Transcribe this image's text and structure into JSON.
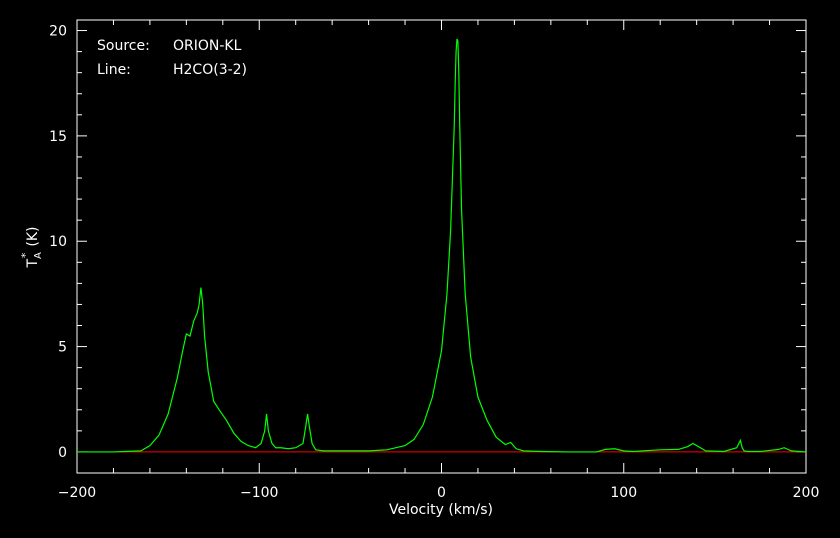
{
  "chart_data": {
    "type": "line",
    "title": "",
    "xlabel": "Velocity (km/s)",
    "ylabel": {
      "main": "T",
      "sub": "A",
      "sup": "*",
      "unit": "(K)"
    },
    "xlim": [
      -200,
      200
    ],
    "ylim": [
      -1,
      20.5
    ],
    "xticks": [
      -200,
      -100,
      0,
      100,
      200
    ],
    "xtick_labels": [
      "−200",
      "−100",
      "0",
      "100",
      "200"
    ],
    "yticks": [
      0,
      5,
      10,
      15,
      20
    ],
    "ytick_labels": [
      "0",
      "5",
      "10",
      "15",
      "20"
    ],
    "grid": false,
    "annotations": [
      {
        "key": "Source:",
        "value": "ORION-KL"
      },
      {
        "key": "Line:",
        "value": "H2CO(3-2)"
      }
    ],
    "colors": {
      "background": "#000000",
      "frame": "#ffffff",
      "spectrum": "#00ff00",
      "baseline": "#ff0000"
    },
    "baseline": {
      "y": 0
    },
    "series": [
      {
        "x": [
          -200,
          -180,
          -165,
          -160,
          -155,
          -150,
          -145,
          -142,
          -140,
          -138,
          -136,
          -134,
          -133,
          -132,
          -131,
          -130,
          -128,
          -125,
          -122,
          -118,
          -114,
          -110,
          -106,
          -102,
          -99,
          -97,
          -96,
          -95,
          -93,
          -91,
          -88,
          -84,
          -80,
          -76,
          -74.5,
          -73.5,
          -72.5,
          -71,
          -69,
          -65,
          -60,
          -50,
          -40,
          -30,
          -20,
          -15,
          -10,
          -5,
          0,
          3,
          5,
          6,
          7,
          7.5,
          8,
          8.5,
          9,
          9.5,
          10,
          11,
          13,
          16,
          20,
          25,
          30,
          35,
          38,
          41,
          45,
          55,
          70,
          85,
          90,
          95,
          100,
          105,
          120,
          130,
          135,
          138,
          141,
          145,
          155,
          162,
          164,
          165,
          166,
          168,
          175,
          185,
          188,
          192,
          200
        ],
        "y": [
          0,
          0,
          0.05,
          0.3,
          0.8,
          1.8,
          3.5,
          4.8,
          5.6,
          5.5,
          6.2,
          6.6,
          7.0,
          7.8,
          7.0,
          5.5,
          3.8,
          2.4,
          2.0,
          1.5,
          0.9,
          0.5,
          0.3,
          0.2,
          0.4,
          1.0,
          1.8,
          1.0,
          0.4,
          0.2,
          0.2,
          0.15,
          0.2,
          0.4,
          1.2,
          1.8,
          1.2,
          0.4,
          0.1,
          0.05,
          0.05,
          0.05,
          0.05,
          0.1,
          0.3,
          0.6,
          1.3,
          2.6,
          4.8,
          7.5,
          10.5,
          13.0,
          15.5,
          17.5,
          19.0,
          19.6,
          19.5,
          18.0,
          15.5,
          11.5,
          7.5,
          4.5,
          2.6,
          1.5,
          0.7,
          0.35,
          0.45,
          0.15,
          0.05,
          0.02,
          0,
          0,
          0.12,
          0.15,
          0.05,
          0.02,
          0.1,
          0.12,
          0.25,
          0.4,
          0.25,
          0.05,
          0.02,
          0.2,
          0.55,
          0.2,
          0.05,
          0.02,
          0.02,
          0.12,
          0.2,
          0.05,
          0
        ]
      }
    ]
  }
}
